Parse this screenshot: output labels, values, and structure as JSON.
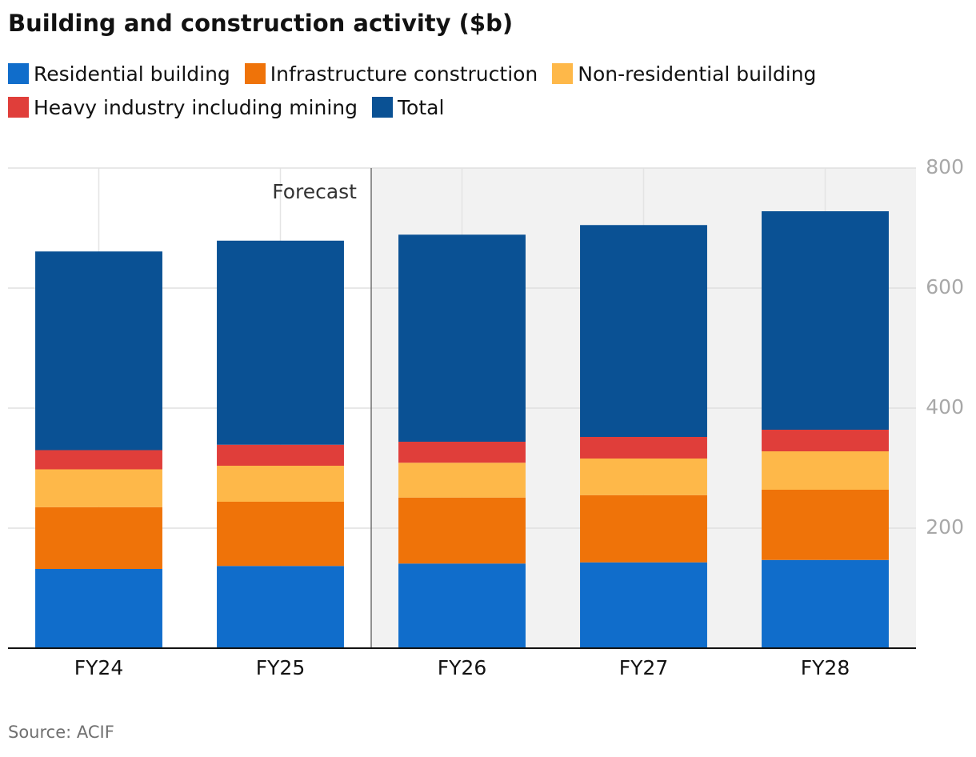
{
  "chart_data": {
    "type": "stacked-bar",
    "title": "Building and construction activity ($b)",
    "categories": [
      "FY24",
      "FY25",
      "FY26",
      "FY27",
      "FY28"
    ],
    "series": [
      {
        "name": "Residential building",
        "color": "#106dcb",
        "values": [
          132,
          137,
          141,
          143,
          147
        ]
      },
      {
        "name": "Infrastructure construction",
        "color": "#ef7309",
        "values": [
          103,
          107,
          110,
          112,
          117
        ]
      },
      {
        "name": "Non-residential building",
        "color": "#feb849",
        "values": [
          63,
          60,
          58,
          61,
          64
        ]
      },
      {
        "name": "Heavy industry including mining",
        "color": "#e03e3a",
        "values": [
          32,
          35,
          35,
          36,
          36
        ]
      },
      {
        "name": "Total",
        "color": "#0a5194",
        "values": [
          331,
          340,
          345,
          353,
          364
        ]
      }
    ],
    "ylim": [
      0,
      800
    ],
    "yticks": [
      200,
      400,
      600,
      800
    ],
    "grid": true,
    "annotation": "Forecast",
    "source": "Source: ACIF"
  }
}
